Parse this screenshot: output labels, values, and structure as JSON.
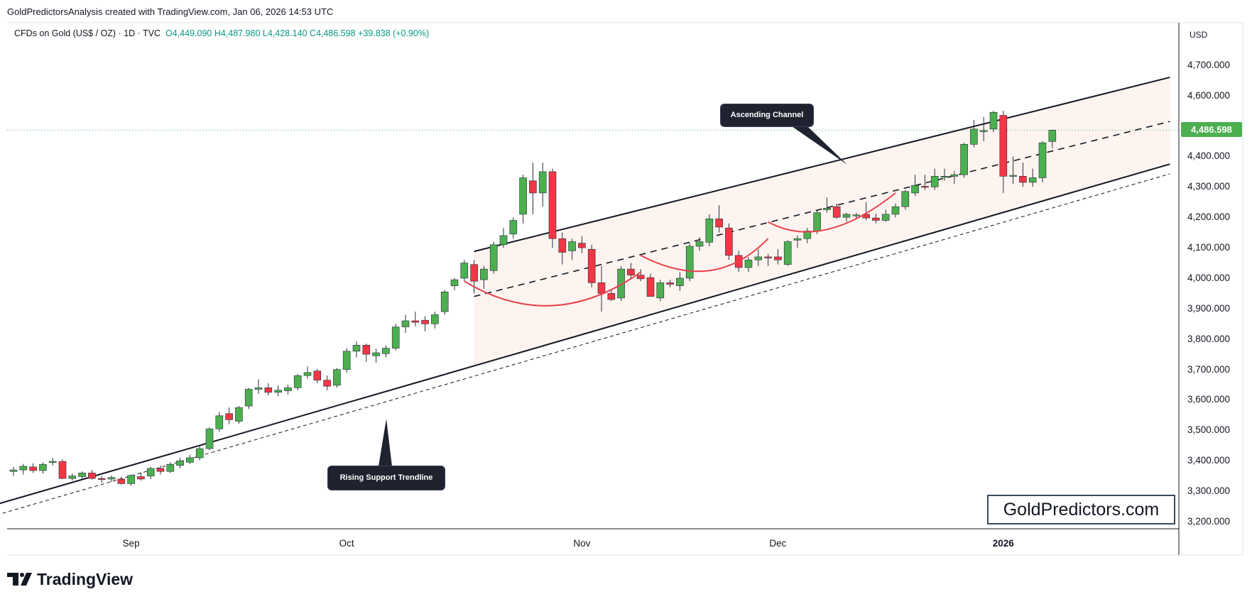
{
  "header": {
    "attribution": "GoldPredictorsAnalysis created with TradingView.com, Jan 06, 2026 14:53 UTC"
  },
  "symbol": {
    "name": "CFDs on Gold (US$ / OZ) · 1D · TVC",
    "ohlc": "O4,449.090 H4,487.980 L4,428.140 C4,486.598 +39.838 (+0.90%)"
  },
  "currency": "USD",
  "last_price_label": "4,486.598",
  "colors": {
    "up": "#4caf50",
    "down": "#f23645",
    "last_price": "#4caf50",
    "arc": "#e8434c"
  },
  "callouts": {
    "channel": "Ascending Channel",
    "support": "Rising Support Trendline"
  },
  "watermark": "GoldPredictors.com",
  "brand": {
    "logo": "tradingview-logo-icon",
    "name": "TradingView"
  },
  "chart_data": {
    "type": "candlestick",
    "title": "CFDs on Gold (US$ / OZ) · 1D · TVC",
    "ylabel": "USD",
    "ylim": [
      3180,
      4800
    ],
    "y_ticks": [
      "4,700.000",
      "4,600.000",
      "4,500.000",
      "4,400.000",
      "4,300.000",
      "4,200.000",
      "4,100.000",
      "4,000.000",
      "3,900.000",
      "3,800.000",
      "3,700.000",
      "3,600.000",
      "3,500.000",
      "3,400.000",
      "3,300.000",
      "3,200.000"
    ],
    "y_tick_values": [
      4700,
      4600,
      4500,
      4400,
      4300,
      4200,
      4100,
      4000,
      3900,
      3800,
      3700,
      3600,
      3500,
      3400,
      3300,
      3200
    ],
    "x_ticks": [
      {
        "label": "Sep",
        "bar": 12,
        "bold": false
      },
      {
        "label": "Oct",
        "bar": 34,
        "bold": false
      },
      {
        "label": "Nov",
        "bar": 58,
        "bold": false
      },
      {
        "label": "Dec",
        "bar": 78,
        "bold": false
      },
      {
        "label": "2026",
        "bar": 101,
        "bold": true
      }
    ],
    "candles": [
      [
        3365,
        3380,
        3350,
        3370
      ],
      [
        3370,
        3390,
        3355,
        3382
      ],
      [
        3380,
        3392,
        3360,
        3368
      ],
      [
        3368,
        3395,
        3358,
        3388
      ],
      [
        3395,
        3410,
        3385,
        3398
      ],
      [
        3398,
        3405,
        3340,
        3342
      ],
      [
        3342,
        3358,
        3335,
        3350
      ],
      [
        3348,
        3365,
        3340,
        3360
      ],
      [
        3360,
        3370,
        3338,
        3342
      ],
      [
        3342,
        3350,
        3328,
        3340
      ],
      [
        3340,
        3352,
        3330,
        3345
      ],
      [
        3340,
        3348,
        3322,
        3325
      ],
      [
        3325,
        3355,
        3318,
        3352
      ],
      [
        3348,
        3362,
        3335,
        3340
      ],
      [
        3350,
        3380,
        3340,
        3375
      ],
      [
        3375,
        3385,
        3355,
        3365
      ],
      [
        3365,
        3395,
        3360,
        3388
      ],
      [
        3385,
        3410,
        3375,
        3400
      ],
      [
        3395,
        3420,
        3390,
        3410
      ],
      [
        3410,
        3448,
        3402,
        3440
      ],
      [
        3440,
        3510,
        3435,
        3505
      ],
      [
        3505,
        3560,
        3495,
        3548
      ],
      [
        3555,
        3575,
        3520,
        3535
      ],
      [
        3530,
        3580,
        3522,
        3575
      ],
      [
        3580,
        3640,
        3570,
        3635
      ],
      [
        3635,
        3668,
        3620,
        3640
      ],
      [
        3640,
        3655,
        3615,
        3625
      ],
      [
        3625,
        3648,
        3612,
        3632
      ],
      [
        3630,
        3650,
        3618,
        3640
      ],
      [
        3640,
        3685,
        3632,
        3680
      ],
      [
        3680,
        3710,
        3670,
        3690
      ],
      [
        3695,
        3702,
        3655,
        3665
      ],
      [
        3665,
        3680,
        3632,
        3645
      ],
      [
        3648,
        3705,
        3640,
        3700
      ],
      [
        3700,
        3770,
        3690,
        3760
      ],
      [
        3760,
        3792,
        3740,
        3780
      ],
      [
        3780,
        3785,
        3725,
        3750
      ],
      [
        3745,
        3768,
        3722,
        3755
      ],
      [
        3752,
        3780,
        3740,
        3770
      ],
      [
        3770,
        3850,
        3762,
        3840
      ],
      [
        3840,
        3880,
        3820,
        3860
      ],
      [
        3860,
        3890,
        3842,
        3855
      ],
      [
        3862,
        3875,
        3825,
        3850
      ],
      [
        3850,
        3890,
        3835,
        3880
      ],
      [
        3890,
        3962,
        3880,
        3955
      ],
      [
        3975,
        4000,
        3960,
        3995
      ],
      [
        4000,
        4060,
        3990,
        4050
      ],
      [
        4045,
        4060,
        3950,
        3990
      ],
      [
        3995,
        4040,
        3965,
        4030
      ],
      [
        4025,
        4120,
        4015,
        4110
      ],
      [
        4110,
        4165,
        4100,
        4140
      ],
      [
        4145,
        4200,
        4130,
        4190
      ],
      [
        4210,
        4340,
        4180,
        4330
      ],
      [
        4320,
        4380,
        4210,
        4280
      ],
      [
        4280,
        4380,
        4235,
        4350
      ],
      [
        4350,
        4360,
        4100,
        4130
      ],
      [
        4130,
        4150,
        4045,
        4085
      ],
      [
        4090,
        4130,
        4060,
        4120
      ],
      [
        4115,
        4138,
        4082,
        4100
      ],
      [
        4095,
        4110,
        3970,
        3985
      ],
      [
        3985,
        4040,
        3890,
        3950
      ],
      [
        3950,
        3965,
        3925,
        3930
      ],
      [
        3935,
        4040,
        3925,
        4030
      ],
      [
        4030,
        4050,
        4000,
        4010
      ],
      [
        4010,
        4030,
        3990,
        3998
      ],
      [
        4002,
        4015,
        3945,
        3940
      ],
      [
        3935,
        3995,
        3925,
        3985
      ],
      [
        3985,
        3995,
        3970,
        3980
      ],
      [
        3975,
        4020,
        3958,
        4000
      ],
      [
        4000,
        4115,
        3990,
        4105
      ],
      [
        4105,
        4135,
        4090,
        4120
      ],
      [
        4118,
        4210,
        4105,
        4195
      ],
      [
        4195,
        4240,
        4150,
        4168
      ],
      [
        4165,
        4180,
        4060,
        4075
      ],
      [
        4075,
        4090,
        4020,
        4035
      ],
      [
        4035,
        4070,
        4020,
        4060
      ],
      [
        4060,
        4095,
        4040,
        4070
      ],
      [
        4070,
        4080,
        4040,
        4068
      ],
      [
        4070,
        4095,
        4045,
        4060
      ],
      [
        4045,
        4125,
        4040,
        4120
      ],
      [
        4125,
        4140,
        4100,
        4130
      ],
      [
        4130,
        4165,
        4115,
        4155
      ],
      [
        4155,
        4225,
        4145,
        4215
      ],
      [
        4225,
        4265,
        4215,
        4230
      ],
      [
        4235,
        4245,
        4195,
        4200
      ],
      [
        4200,
        4215,
        4185,
        4210
      ],
      [
        4205,
        4215,
        4195,
        4208
      ],
      [
        4210,
        4250,
        4190,
        4198
      ],
      [
        4198,
        4212,
        4180,
        4190
      ],
      [
        4190,
        4225,
        4185,
        4210
      ],
      [
        4210,
        4245,
        4200,
        4235
      ],
      [
        4235,
        4290,
        4225,
        4285
      ],
      [
        4280,
        4340,
        4270,
        4305
      ],
      [
        4302,
        4340,
        4290,
        4300
      ],
      [
        4300,
        4360,
        4290,
        4335
      ],
      [
        4332,
        4360,
        4320,
        4335
      ],
      [
        4335,
        4352,
        4310,
        4340
      ],
      [
        4340,
        4445,
        4330,
        4440
      ],
      [
        4440,
        4520,
        4430,
        4490
      ],
      [
        4485,
        4530,
        4450,
        4485
      ],
      [
        4490,
        4550,
        4480,
        4545
      ],
      [
        4535,
        4550,
        4280,
        4335
      ],
      [
        4335,
        4400,
        4310,
        4338
      ],
      [
        4335,
        4380,
        4300,
        4315
      ],
      [
        4315,
        4360,
        4300,
        4330
      ],
      [
        4330,
        4450,
        4315,
        4445
      ],
      [
        4449.09,
        4487.98,
        4428.14,
        4486.598
      ]
    ],
    "annotations": {
      "rising_support": {
        "from": [
          -3,
          3245
        ],
        "to": [
          118,
          4375
        ]
      },
      "support_dashed": {
        "from": [
          -3,
          3210
        ],
        "to": [
          118,
          4343
        ]
      },
      "channel_upper": {
        "from": [
          47,
          4088
        ],
        "to": [
          118,
          4660
        ]
      },
      "channel_midline": {
        "from": [
          47,
          3940
        ],
        "to": [
          118,
          4515
        ]
      },
      "arcs": [
        {
          "from": [
            46,
            3990
          ],
          "mid": [
            55,
            3910
          ],
          "to": [
            64,
            4020
          ]
        },
        {
          "from": [
            64,
            4075
          ],
          "mid": [
            71,
            4025
          ],
          "to": [
            77,
            4130
          ]
        },
        {
          "from": [
            77,
            4185
          ],
          "mid": [
            83,
            4160
          ],
          "to": [
            90,
            4280
          ]
        }
      ]
    }
  }
}
